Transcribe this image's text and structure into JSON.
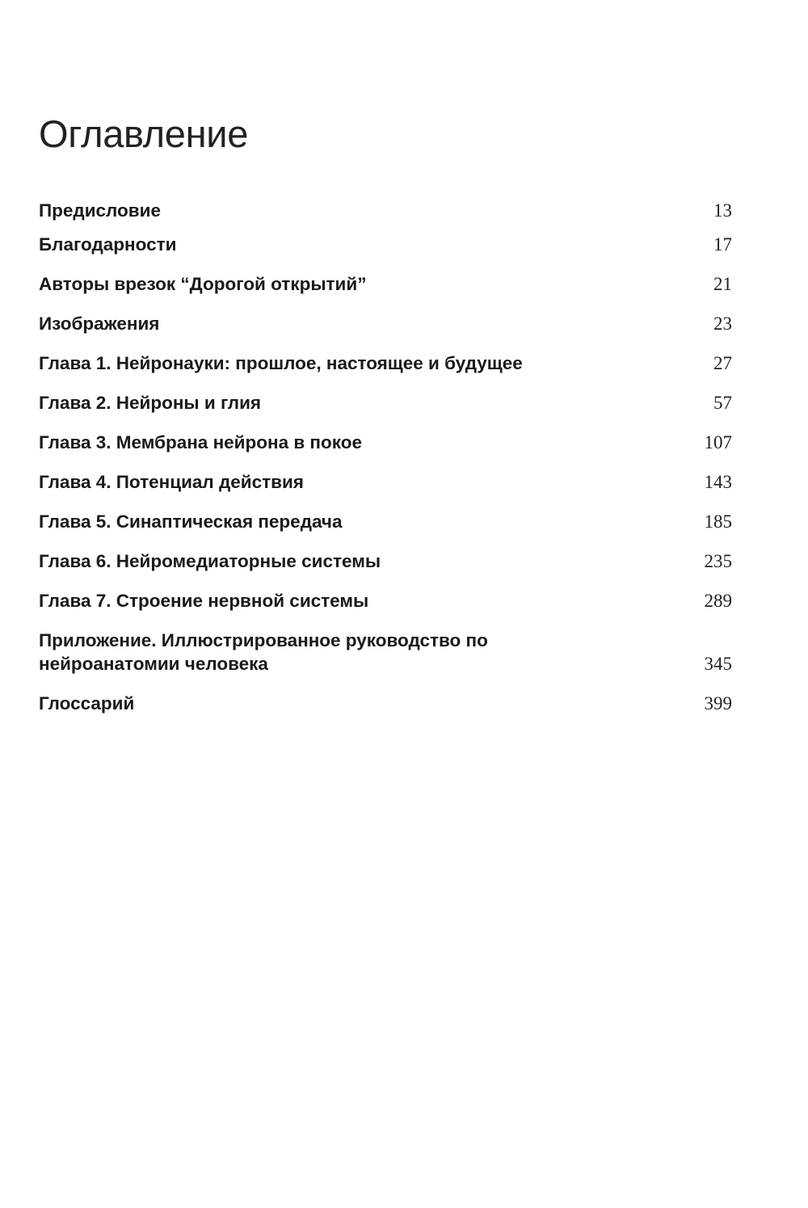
{
  "title": "Оглавление",
  "entries": [
    {
      "label": "Предисловие",
      "page": "13"
    },
    {
      "label": "Благодарности",
      "page": "17"
    },
    {
      "label": "Авторы врезок “Дорогой открытий”",
      "page": "21"
    },
    {
      "label": "Изображения",
      "page": "23"
    },
    {
      "label": "Глава 1. Нейронауки: прошлое, настоящее и будущее",
      "page": "27"
    },
    {
      "label": "Глава 2. Нейроны и глия",
      "page": "57"
    },
    {
      "label": "Глава 3. Мембрана нейрона в покое",
      "page": "107"
    },
    {
      "label": "Глава 4. Потенциал действия",
      "page": "143"
    },
    {
      "label": "Глава 5. Синаптическая передача",
      "page": "185"
    },
    {
      "label": "Глава 6. Нейромедиаторные системы",
      "page": "235"
    },
    {
      "label": "Глава 7. Строение нервной системы",
      "page": "289"
    },
    {
      "label": "Приложение. Иллюстрированное руководство по нейроанатомии человека",
      "page": "345"
    },
    {
      "label": "Глоссарий",
      "page": "399"
    }
  ]
}
